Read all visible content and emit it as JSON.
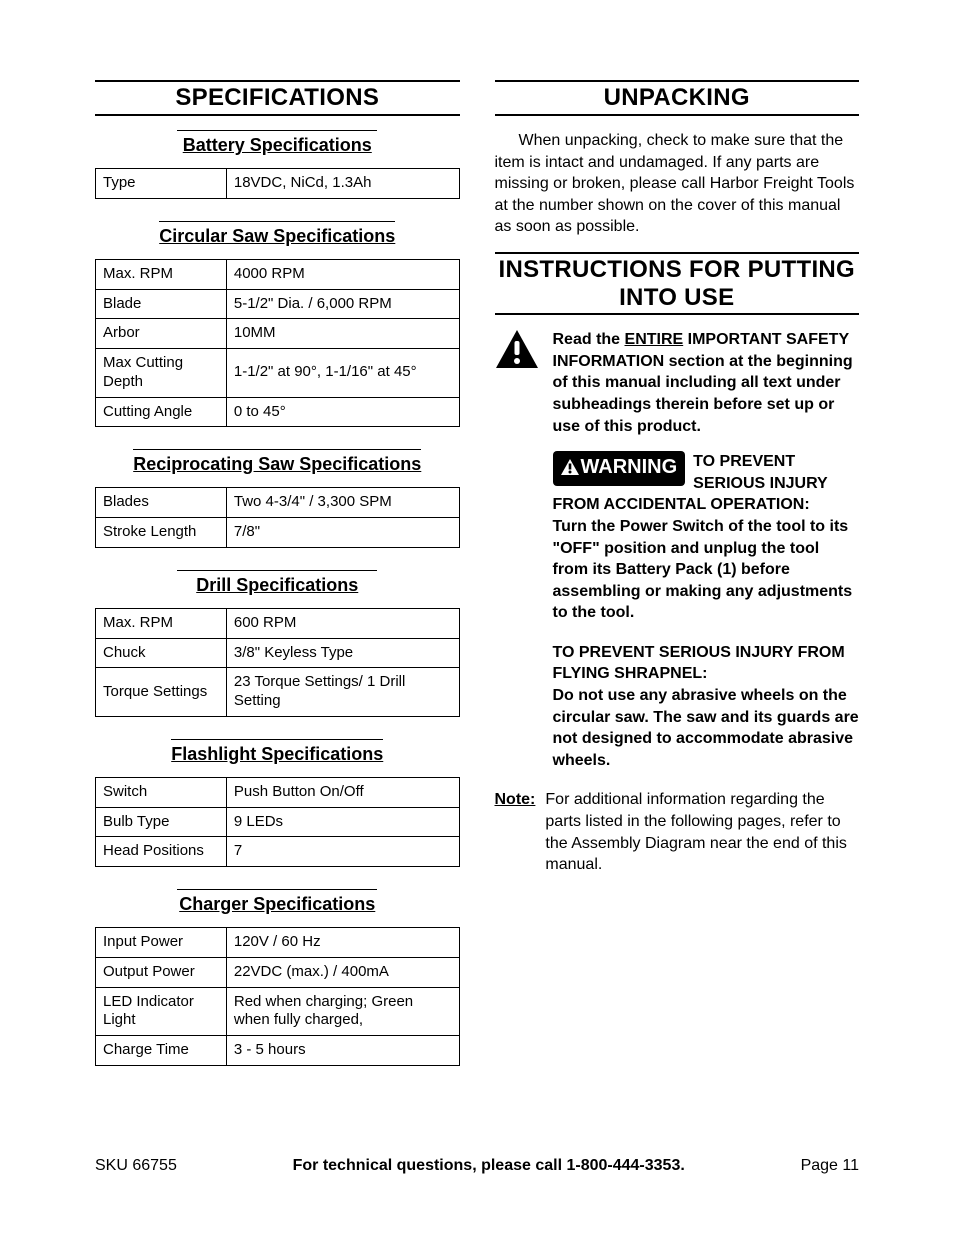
{
  "left": {
    "header": "SPECIFICATIONS",
    "sections": [
      {
        "title": "Battery Specifications",
        "rows": [
          [
            "Type",
            "18VDC, NiCd, 1.3Ah"
          ]
        ]
      },
      {
        "title": "Circular Saw Specifications",
        "rows": [
          [
            "Max. RPM",
            "4000 RPM"
          ],
          [
            "Blade",
            "5-1/2\" Dia. / 6,000 RPM"
          ],
          [
            "Arbor",
            "10MM"
          ],
          [
            "Max Cutting Depth",
            "1-1/2\" at 90°, 1-1/16\" at 45°"
          ],
          [
            "Cutting Angle",
            "0 to 45°"
          ]
        ]
      },
      {
        "title": "Reciprocating Saw Specifications",
        "rows": [
          [
            "Blades",
            "Two 4-3/4\" / 3,300 SPM"
          ],
          [
            "Stroke Length",
            "7/8\""
          ]
        ]
      },
      {
        "title": "Drill Specifications",
        "rows": [
          [
            "Max. RPM",
            "600 RPM"
          ],
          [
            "Chuck",
            "3/8\" Keyless Type"
          ],
          [
            "Torque Settings",
            "23 Torque Settings/ 1 Drill Setting"
          ]
        ]
      },
      {
        "title": "Flashlight Specifications",
        "rows": [
          [
            "Switch",
            "Push Button On/Off"
          ],
          [
            "Bulb Type",
            "9 LEDs"
          ],
          [
            "Head Positions",
            "7"
          ]
        ]
      },
      {
        "title": "Charger Specifications",
        "rows": [
          [
            "Input Power",
            "120V / 60 Hz"
          ],
          [
            "Output Power",
            "22VDC (max.) / 400mA"
          ],
          [
            "LED Indicator Light",
            "Red when charging; Green when fully charged,"
          ],
          [
            "Charge Time",
            "3 - 5 hours"
          ]
        ]
      }
    ]
  },
  "right": {
    "unpacking_header": "UNPACKING",
    "unpacking_text": "When unpacking, check to make sure that the item is intact and undamaged.  If any parts are missing or broken, please call Harbor Freight Tools at the number shown on the cover of this manual as soon as possible.",
    "instructions_header": "INSTRUCTIONS FOR PUTTING INTO USE",
    "safety_read_pre": "Read the ",
    "safety_read_entire": "ENTIRE",
    "safety_read_post": " IMPORTANT SAFETY INFORMATION section at the beginning of this manual including all text under subheadings therein before set up or use of this product.",
    "warning_label": "WARNING",
    "warn1_head": "TO PREVENT SERIOUS INJURY FROM ACCIDENTAL OPERATION:",
    "warn1_body": "Turn the Power Switch of the tool to its \"OFF\" position and unplug the tool from its Battery Pack (1) before assembling or making any adjustments to the tool.",
    "warn2_head": "TO PREVENT SERIOUS INJURY FROM FLYING SHRAPNEL:",
    "warn2_body": "Do not use any abrasive wheels on the circular saw.  The saw and its guards are not designed to accommodate abrasive wheels.",
    "note_label": "Note:",
    "note_text": "For additional information regarding the parts listed in the following pages, refer to the Assembly Diagram near the end of this manual."
  },
  "footer": {
    "sku": "SKU 66755",
    "support": "For technical questions, please call 1-800-444-3353.",
    "page": "Page 11"
  },
  "colors": {
    "text": "#000000",
    "background": "#ffffff",
    "warning_bg": "#000000",
    "warning_fg": "#ffffff"
  },
  "typography": {
    "body_fontsize": 16,
    "table_fontsize": 15,
    "section_header_fontsize": 24,
    "sub_header_fontsize": 18,
    "warning_badge_fontsize": 20
  }
}
